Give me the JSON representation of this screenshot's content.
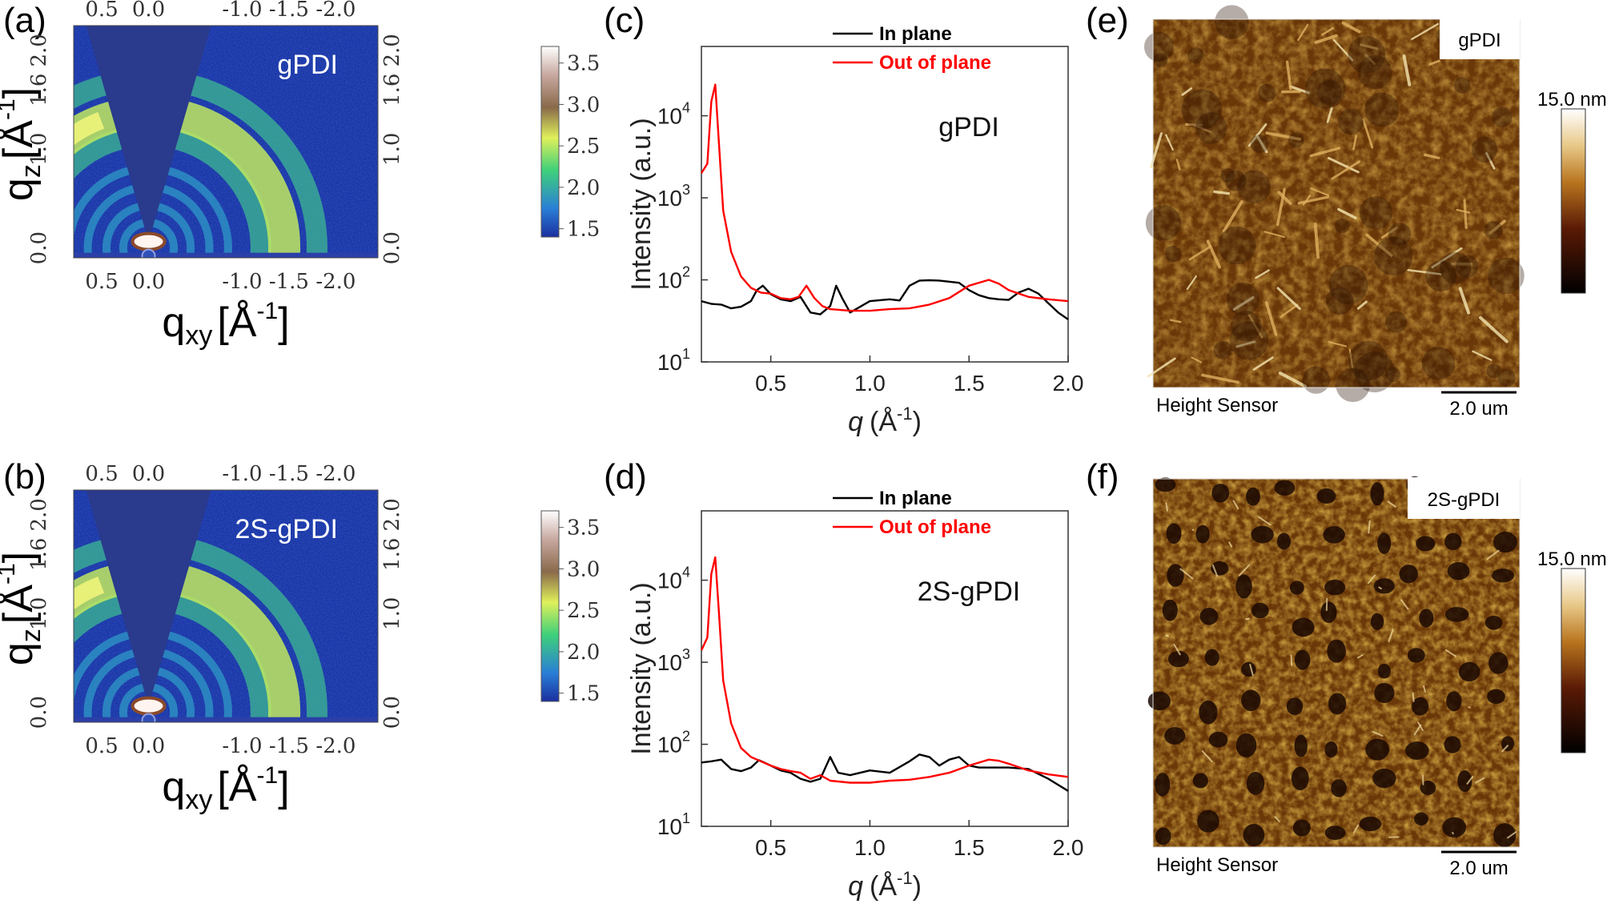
{
  "figure": {
    "panels": {
      "a": {
        "letter": "(a)",
        "sample": "gPDI"
      },
      "b": {
        "letter": "(b)",
        "sample": "2S-gPDI"
      },
      "c": {
        "letter": "(c)",
        "sample": "gPDI"
      },
      "d": {
        "letter": "(d)",
        "sample": "2S-gPDI"
      },
      "e": {
        "letter": "(e)",
        "sample": "gPDI"
      },
      "f": {
        "letter": "(f)",
        "sample": "2S-gPDI"
      }
    },
    "colors": {
      "giwaxs_background": "#1b36a8",
      "wedge": "#2a3a8c",
      "in_plane": "#000000",
      "out_of_plane": "#ff0000",
      "afm_base": "#8a4b0c"
    }
  },
  "chart_data": [
    {
      "panel": "a",
      "type": "heatmap",
      "title": "gPDI",
      "xlabel": "q",
      "xlabel_sub": "xy",
      "ylabel": "q",
      "ylabel_sub": "z",
      "unit": "[Å",
      "unit_sup": "-1",
      "unit_close": "]",
      "x_ticks": [
        "0.5",
        "0.0",
        "-1.0",
        "-1.5",
        "-2.0"
      ],
      "x_tick_values": [
        0.5,
        0.0,
        -1.0,
        -1.5,
        -2.0
      ],
      "y_ticks": [
        "0.0",
        "1.0",
        "1.6",
        "2.0"
      ],
      "y_tick_values": [
        0.0,
        1.0,
        1.6,
        2.0
      ],
      "right_ticks": [
        "0.0",
        "1.0",
        "1.6",
        "2.0"
      ],
      "xlim": [
        0.8,
        -2.45
      ],
      "ylim": [
        -0.1,
        2.25
      ],
      "colorbar": {
        "ticks": [
          "1.5",
          "2.0",
          "2.5",
          "3.0",
          "3.5"
        ],
        "values": [
          1.5,
          2.0,
          2.5,
          3.0,
          3.5
        ],
        "range": [
          1.4,
          3.7
        ]
      },
      "rings_q": [
        0.27,
        0.45,
        0.65,
        0.85,
        1.2,
        1.45,
        1.8
      ],
      "bright_ring_q": 1.45
    },
    {
      "panel": "b",
      "type": "heatmap",
      "title": "2S-gPDI",
      "xlabel": "q",
      "xlabel_sub": "xy",
      "ylabel": "q",
      "ylabel_sub": "z",
      "unit": "[Å",
      "unit_sup": "-1",
      "unit_close": "]",
      "x_ticks": [
        "0.5",
        "0.0",
        "-1.0",
        "-1.5",
        "-2.0"
      ],
      "x_tick_values": [
        0.5,
        0.0,
        -1.0,
        -1.5,
        -2.0
      ],
      "y_ticks": [
        "0.0",
        "1.0",
        "1.6",
        "2.0"
      ],
      "y_tick_values": [
        0.0,
        1.0,
        1.6,
        2.0
      ],
      "right_ticks": [
        "0.0",
        "1.0",
        "1.6",
        "2.0"
      ],
      "xlim": [
        0.8,
        -2.45
      ],
      "ylim": [
        -0.1,
        2.25
      ],
      "colorbar": {
        "ticks": [
          "1.5",
          "2.0",
          "2.5",
          "3.0",
          "3.5"
        ],
        "values": [
          1.5,
          2.0,
          2.5,
          3.0,
          3.5
        ],
        "range": [
          1.4,
          3.7
        ]
      },
      "rings_q": [
        0.27,
        0.45,
        0.65,
        0.85,
        1.2,
        1.45,
        1.8
      ],
      "bright_ring_q": 1.45
    },
    {
      "panel": "c",
      "type": "line",
      "xlabel": "q",
      "xlabel_unit": "(Å",
      "xlabel_sup": "-1",
      "xlabel_close": ")",
      "ylabel": "Intensity (a.u.)",
      "annotation": "gPDI",
      "xlim": [
        0.15,
        2.0
      ],
      "ylim_log": [
        10,
        70000
      ],
      "yscale": "log",
      "x_ticks": [
        "0.5",
        "1.0",
        "1.5",
        "2.0"
      ],
      "x_tick_values": [
        0.5,
        1.0,
        1.5,
        2.0
      ],
      "y_ticks": [
        {
          "base": "10",
          "exp": "1",
          "value": 10
        },
        {
          "base": "10",
          "exp": "2",
          "value": 100
        },
        {
          "base": "10",
          "exp": "3",
          "value": 1000
        },
        {
          "base": "10",
          "exp": "4",
          "value": 10000
        }
      ],
      "legend_position": "top-right",
      "series": [
        {
          "name": "In plane",
          "color": "#000000",
          "x": [
            0.15,
            0.2,
            0.25,
            0.3,
            0.35,
            0.4,
            0.43,
            0.46,
            0.5,
            0.55,
            0.6,
            0.65,
            0.7,
            0.75,
            0.8,
            0.83,
            0.86,
            0.9,
            1.0,
            1.1,
            1.15,
            1.2,
            1.25,
            1.3,
            1.35,
            1.4,
            1.45,
            1.5,
            1.55,
            1.6,
            1.65,
            1.7,
            1.75,
            1.8,
            1.85,
            1.9,
            1.95,
            2.0
          ],
          "y": [
            55,
            51,
            50,
            45,
            47,
            55,
            75,
            85,
            67,
            58,
            55,
            62,
            40,
            38,
            48,
            85,
            60,
            40,
            55,
            58,
            56,
            85,
            98,
            99,
            98,
            95,
            92,
            75,
            65,
            60,
            58,
            57,
            70,
            78,
            68,
            52,
            40,
            33
          ]
        },
        {
          "name": "Out of plane",
          "color": "#ff0000",
          "x": [
            0.15,
            0.18,
            0.2,
            0.22,
            0.24,
            0.26,
            0.3,
            0.35,
            0.4,
            0.45,
            0.5,
            0.55,
            0.6,
            0.64,
            0.68,
            0.72,
            0.76,
            0.8,
            0.9,
            1.0,
            1.1,
            1.2,
            1.3,
            1.4,
            1.5,
            1.6,
            1.65,
            1.7,
            1.8,
            1.9,
            2.0
          ],
          "y": [
            2000,
            2600,
            15000,
            24000,
            4000,
            700,
            220,
            110,
            80,
            70,
            68,
            60,
            58,
            62,
            85,
            60,
            48,
            44,
            42,
            42,
            44,
            45,
            50,
            60,
            85,
            100,
            90,
            75,
            62,
            58,
            55
          ]
        }
      ]
    },
    {
      "panel": "d",
      "type": "line",
      "xlabel": "q",
      "xlabel_unit": "(Å",
      "xlabel_sup": "-1",
      "xlabel_close": ")",
      "ylabel": "Intensity (a.u.)",
      "annotation": "2S-gPDI",
      "xlim": [
        0.15,
        2.0
      ],
      "ylim_log": [
        10,
        70000
      ],
      "yscale": "log",
      "x_ticks": [
        "0.5",
        "1.0",
        "1.5",
        "2.0"
      ],
      "x_tick_values": [
        0.5,
        1.0,
        1.5,
        2.0
      ],
      "y_ticks": [
        {
          "base": "10",
          "exp": "1",
          "value": 10
        },
        {
          "base": "10",
          "exp": "2",
          "value": 100
        },
        {
          "base": "10",
          "exp": "3",
          "value": 1000
        },
        {
          "base": "10",
          "exp": "4",
          "value": 10000
        }
      ],
      "legend_position": "top-right",
      "series": [
        {
          "name": "In plane",
          "color": "#000000",
          "x": [
            0.15,
            0.2,
            0.25,
            0.3,
            0.35,
            0.4,
            0.44,
            0.48,
            0.55,
            0.6,
            0.65,
            0.7,
            0.75,
            0.8,
            0.84,
            0.9,
            1.0,
            1.1,
            1.2,
            1.25,
            1.3,
            1.35,
            1.4,
            1.45,
            1.5,
            1.55,
            1.6,
            1.7,
            1.8,
            1.9,
            2.0
          ],
          "y": [
            60,
            62,
            65,
            50,
            47,
            52,
            64,
            58,
            48,
            45,
            38,
            35,
            38,
            70,
            45,
            42,
            48,
            45,
            62,
            75,
            70,
            55,
            65,
            70,
            55,
            52,
            52,
            52,
            50,
            38,
            27
          ]
        },
        {
          "name": "Out of plane",
          "color": "#ff0000",
          "x": [
            0.15,
            0.18,
            0.2,
            0.22,
            0.24,
            0.26,
            0.3,
            0.35,
            0.4,
            0.45,
            0.5,
            0.55,
            0.6,
            0.65,
            0.7,
            0.75,
            0.8,
            0.9,
            1.0,
            1.1,
            1.2,
            1.3,
            1.4,
            1.5,
            1.6,
            1.65,
            1.7,
            1.8,
            1.9,
            2.0
          ],
          "y": [
            1400,
            2000,
            12000,
            19000,
            3500,
            600,
            180,
            90,
            70,
            62,
            55,
            50,
            47,
            45,
            38,
            42,
            36,
            34,
            34,
            36,
            37,
            40,
            45,
            55,
            65,
            63,
            58,
            48,
            43,
            40
          ]
        }
      ]
    },
    {
      "panel": "e",
      "type": "heatmap",
      "title": "gPDI",
      "caption_left": "Height Sensor",
      "scale_bar": "2.0 um",
      "colorbar_label": "15.0 nm",
      "colorbar_range": [
        0,
        15.0
      ],
      "colors": {
        "low": "#000000",
        "mid": "#8a4b0c",
        "high": "#ffffff"
      }
    },
    {
      "panel": "f",
      "type": "heatmap",
      "title": "2S-gPDI",
      "caption_left": "Height Sensor",
      "scale_bar": "2.0 um",
      "colorbar_label": "15.0 nm",
      "colorbar_range": [
        0,
        15.0
      ],
      "colors": {
        "low": "#000000",
        "mid": "#8a4b0c",
        "high": "#ffffff"
      }
    }
  ]
}
